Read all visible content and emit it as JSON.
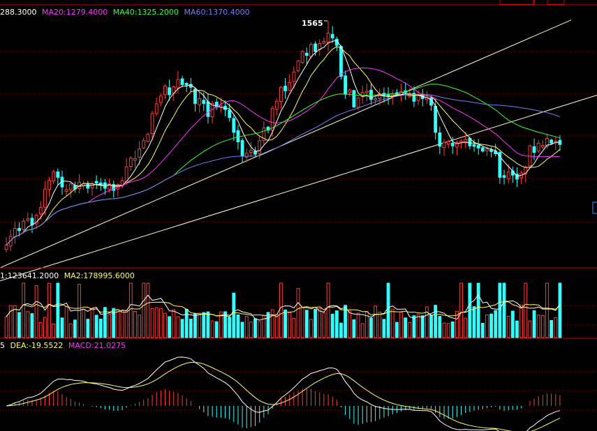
{
  "colors": {
    "bg": "#000000",
    "up": "#ff3b3b",
    "down": "#33ffff",
    "frame": "#cc0000",
    "grid": "#aa0000",
    "ma_white": "#ffffff",
    "ma_yellow": "#ffff66",
    "ma20": "#ff33ff",
    "ma40": "#33ff33",
    "ma60": "#7a7aff",
    "trendline": "#ffffcc",
    "text": "#ffffff"
  },
  "price_panel": {
    "legend": [
      {
        "text": "288.3000",
        "color": "#ffffff"
      },
      {
        "text": "MA20:1279.4000",
        "color": "#ff33ff"
      },
      {
        "text": "MA40:1325.2000",
        "color": "#33ff33"
      },
      {
        "text": "MA60:1370.4000",
        "color": "#7a7aff"
      }
    ],
    "peak_label": "1565"
  },
  "volume_panel": {
    "legend": [
      {
        "text": "1:123641.2000",
        "color": "#ffffff"
      },
      {
        "text": "MA2:178995.6000",
        "color": "#ffff66"
      }
    ]
  },
  "macd_panel": {
    "legend": [
      {
        "text": "5",
        "color": "#ffffff"
      },
      {
        "text": "DEA:-19.5522",
        "color": "#ffff66"
      },
      {
        "text": "MACD:21.0275",
        "color": "#ff33ff"
      }
    ]
  },
  "chart_data": {
    "type": "candlestick",
    "price_series": {
      "closes": [
        1052,
        1072,
        1090,
        1085,
        1107,
        1112,
        1098,
        1120,
        1138,
        1180,
        1200,
        1220,
        1207,
        1185,
        1179,
        1192,
        1180,
        1196,
        1192,
        1182,
        1192,
        1194,
        1191,
        1182,
        1192,
        1177,
        1190,
        1199,
        1231,
        1251,
        1250,
        1272,
        1291,
        1306,
        1353,
        1375,
        1393,
        1416,
        1396,
        1414,
        1431,
        1419,
        1418,
        1413,
        1376,
        1387,
        1376,
        1346,
        1376,
        1368,
        1371,
        1362,
        1344,
        1310,
        1288,
        1256,
        1262,
        1269,
        1260,
        1291,
        1320,
        1315,
        1365,
        1381,
        1413,
        1405,
        1424,
        1448,
        1473,
        1495,
        1486,
        1511,
        1495,
        1513,
        1518,
        1537,
        1526,
        1509,
        1438,
        1397,
        1407,
        1368,
        1388,
        1401,
        1404,
        1385,
        1387,
        1398,
        1393,
        1393,
        1397,
        1397,
        1403,
        1401,
        1396,
        1381,
        1394,
        1387,
        1390,
        1372,
        1310,
        1278,
        1287,
        1289,
        1279,
        1286,
        1290,
        1294,
        1279,
        1278,
        1274,
        1267,
        1272,
        1266,
        1261,
        1207,
        1207,
        1219,
        1212,
        1203,
        1217,
        1230,
        1279,
        1264,
        1285,
        1280,
        1296,
        1285,
        1290,
        1282
      ],
      "ma20_last": 1279.4,
      "ma40_last": 1325.2,
      "ma60_last": 1370.4,
      "peak": 1565
    },
    "volume_legend": {
      "vol": 123641.2,
      "ma2": 178995.6
    },
    "macd_legend": {
      "dea": -19.5522,
      "macd": 21.0275
    }
  }
}
